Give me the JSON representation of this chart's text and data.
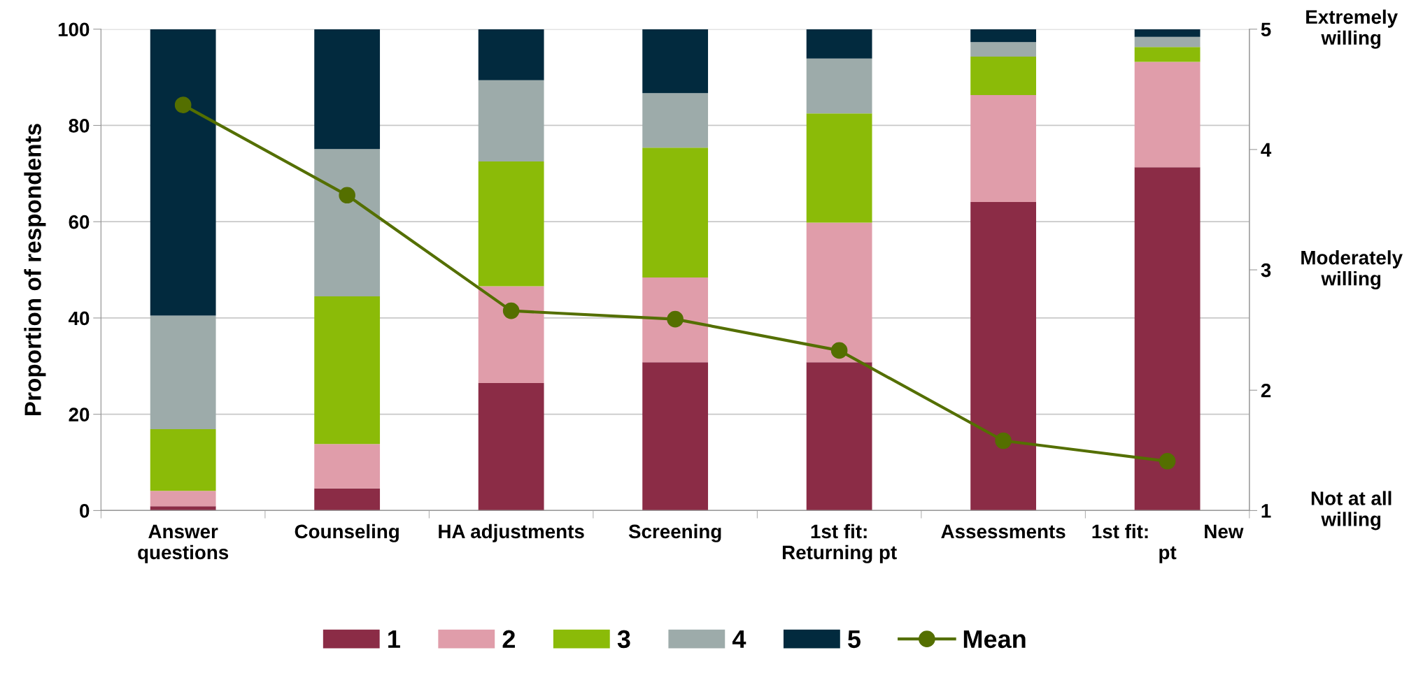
{
  "chart_data": {
    "type": "bar",
    "stacked": true,
    "ylabel": "Proportion of respondents",
    "categories": [
      "Answer\nquestions",
      "Counseling",
      "HA adjustments",
      "Screening",
      "1st fit:\nReturning pt",
      "Assessments",
      "1st fit:          New\npt"
    ],
    "series": [
      {
        "name": "1",
        "color": "#8b2c46",
        "values": [
          0.9,
          4.6,
          26.5,
          30.8,
          30.8,
          64.1,
          71.3
        ]
      },
      {
        "name": "2",
        "color": "#e09daa",
        "values": [
          3.2,
          9.2,
          20.1,
          17.6,
          29.0,
          22.2,
          21.9
        ]
      },
      {
        "name": "3",
        "color": "#8bbb08",
        "values": [
          12.8,
          30.7,
          25.9,
          27.0,
          22.7,
          8.0,
          3.1
        ]
      },
      {
        "name": "4",
        "color": "#9dabaa",
        "values": [
          23.6,
          30.6,
          16.9,
          11.3,
          11.4,
          3.0,
          2.1
        ]
      },
      {
        "name": "5",
        "color": "#022a3e",
        "values": [
          59.5,
          24.9,
          10.6,
          13.3,
          6.1,
          2.7,
          1.6
        ]
      },
      {
        "name": "Mean",
        "type": "line",
        "axis": "y2",
        "color": "#546f00",
        "marker": "circle",
        "line_style": "solid",
        "values": [
          4.37,
          3.62,
          2.66,
          2.59,
          2.33,
          1.58,
          1.41
        ]
      }
    ],
    "ylim": [
      0,
      100
    ],
    "yticks": [
      0,
      20,
      40,
      60,
      80,
      100
    ],
    "y2lim": [
      1,
      5
    ],
    "y2ticks": [
      1,
      2,
      3,
      4,
      5
    ],
    "annotations": [
      "Extremely\nwilling",
      "Moderately\nwilling",
      "Not at all\nwilling"
    ],
    "grid": "y",
    "legend": "bottom"
  }
}
